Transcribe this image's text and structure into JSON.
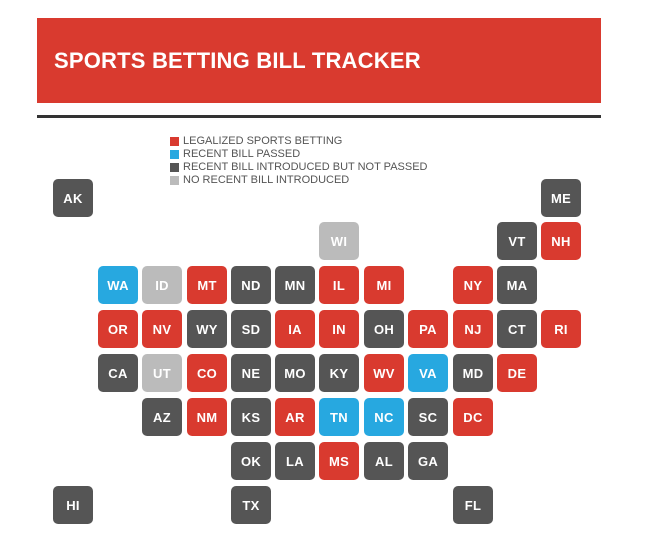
{
  "title": "SPORTS BETTING BILL TRACKER",
  "legend": [
    {
      "status": "legalized",
      "label": "LEGALIZED SPORTS BETTING",
      "color": "#d93a2f"
    },
    {
      "status": "passed",
      "label": "RECENT BILL PASSED",
      "color": "#27a8e0"
    },
    {
      "status": "introduced",
      "label": "RECENT BILL INTRODUCED BUT NOT PASSED",
      "color": "#555555"
    },
    {
      "status": "none",
      "label": "NO RECENT BILL INTRODUCED",
      "color": "#bbbbbb"
    }
  ],
  "states": [
    {
      "abbr": "AK",
      "status": "introduced"
    },
    {
      "abbr": "ME",
      "status": "introduced"
    },
    {
      "abbr": "WI",
      "status": "none"
    },
    {
      "abbr": "VT",
      "status": "introduced"
    },
    {
      "abbr": "NH",
      "status": "legalized"
    },
    {
      "abbr": "WA",
      "status": "passed"
    },
    {
      "abbr": "ID",
      "status": "none"
    },
    {
      "abbr": "MT",
      "status": "legalized"
    },
    {
      "abbr": "ND",
      "status": "introduced"
    },
    {
      "abbr": "MN",
      "status": "introduced"
    },
    {
      "abbr": "IL",
      "status": "legalized"
    },
    {
      "abbr": "MI",
      "status": "legalized"
    },
    {
      "abbr": "NY",
      "status": "legalized"
    },
    {
      "abbr": "MA",
      "status": "introduced"
    },
    {
      "abbr": "OR",
      "status": "legalized"
    },
    {
      "abbr": "NV",
      "status": "legalized"
    },
    {
      "abbr": "WY",
      "status": "introduced"
    },
    {
      "abbr": "SD",
      "status": "introduced"
    },
    {
      "abbr": "IA",
      "status": "legalized"
    },
    {
      "abbr": "IN",
      "status": "legalized"
    },
    {
      "abbr": "OH",
      "status": "introduced"
    },
    {
      "abbr": "PA",
      "status": "legalized"
    },
    {
      "abbr": "NJ",
      "status": "legalized"
    },
    {
      "abbr": "CT",
      "status": "introduced"
    },
    {
      "abbr": "RI",
      "status": "legalized"
    },
    {
      "abbr": "CA",
      "status": "introduced"
    },
    {
      "abbr": "UT",
      "status": "none"
    },
    {
      "abbr": "CO",
      "status": "legalized"
    },
    {
      "abbr": "NE",
      "status": "introduced"
    },
    {
      "abbr": "MO",
      "status": "introduced"
    },
    {
      "abbr": "KY",
      "status": "introduced"
    },
    {
      "abbr": "WV",
      "status": "legalized"
    },
    {
      "abbr": "VA",
      "status": "passed"
    },
    {
      "abbr": "MD",
      "status": "introduced"
    },
    {
      "abbr": "DE",
      "status": "legalized"
    },
    {
      "abbr": "AZ",
      "status": "introduced"
    },
    {
      "abbr": "NM",
      "status": "legalized"
    },
    {
      "abbr": "KS",
      "status": "introduced"
    },
    {
      "abbr": "AR",
      "status": "legalized"
    },
    {
      "abbr": "TN",
      "status": "passed"
    },
    {
      "abbr": "NC",
      "status": "passed"
    },
    {
      "abbr": "SC",
      "status": "introduced"
    },
    {
      "abbr": "DC",
      "status": "legalized"
    },
    {
      "abbr": "OK",
      "status": "introduced"
    },
    {
      "abbr": "LA",
      "status": "introduced"
    },
    {
      "abbr": "MS",
      "status": "legalized"
    },
    {
      "abbr": "AL",
      "status": "introduced"
    },
    {
      "abbr": "GA",
      "status": "introduced"
    },
    {
      "abbr": "HI",
      "status": "introduced"
    },
    {
      "abbr": "TX",
      "status": "introduced"
    },
    {
      "abbr": "FL",
      "status": "introduced"
    }
  ]
}
